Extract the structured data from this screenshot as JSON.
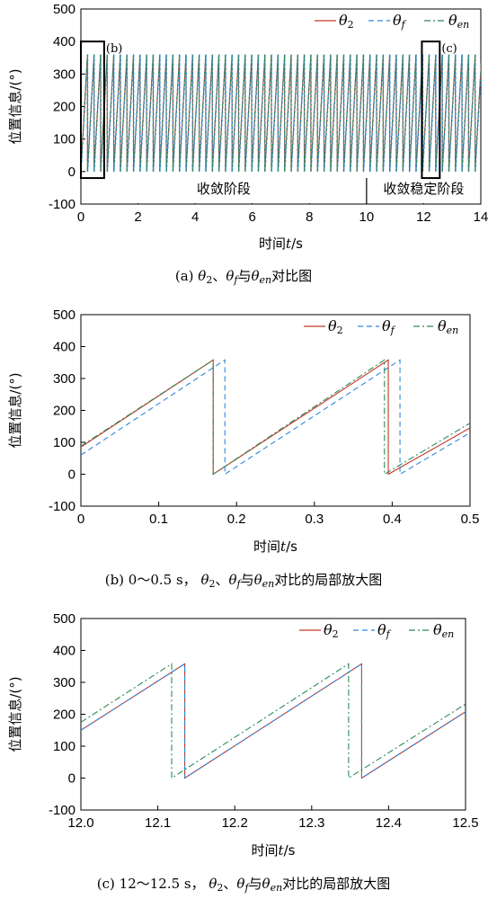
{
  "chart_data": [
    {
      "type": "line",
      "xlabel": "时间t/s",
      "ylabel": "位置信息/(°)",
      "xlim": [
        0,
        14
      ],
      "ylim": [
        -100,
        500
      ],
      "xticks": [
        "0",
        "2",
        "4",
        "6",
        "8",
        "10",
        "12",
        "14"
      ],
      "yticks": [
        "-100",
        "0",
        "100",
        "200",
        "300",
        "400",
        "500"
      ],
      "legend": [
        "θ2",
        "θf",
        "θen"
      ],
      "legend_position": "top-right",
      "grid": false,
      "period_s": 0.23,
      "wrap_deg": 360,
      "annotations": {
        "phase_converge": "收敛阶段",
        "phase_stable": "收敛稳定阶段",
        "phase_boundary_x": 10,
        "box_b_label": "(b)",
        "box_b_x": [
          0,
          0.5
        ],
        "box_b_y": [
          -20,
          400
        ],
        "box_c_label": "(c)",
        "box_c_x": [
          12,
          12.5
        ],
        "box_c_y": [
          -20,
          400
        ]
      },
      "caption": "(a) θ2、θf与θen对比图"
    },
    {
      "type": "line",
      "xlabel": "时间t/s",
      "ylabel": "位置信息/(°)",
      "xlim": [
        0,
        0.5
      ],
      "ylim": [
        -100,
        500
      ],
      "xticks": [
        "0",
        "0.1",
        "0.2",
        "0.3",
        "0.4",
        "0.5"
      ],
      "yticks": [
        "-100",
        "0",
        "100",
        "200",
        "300",
        "400",
        "500"
      ],
      "legend": [
        "θ2",
        "θf",
        "θen"
      ],
      "legend_position": "top-right",
      "grid": false,
      "series": [
        {
          "name": "θ2",
          "color": "#c0392b",
          "dash": "solid",
          "x": [
            0,
            0.17,
            0.17,
            0.395,
            0.395,
            0.5
          ],
          "y": [
            85,
            358,
            0,
            358,
            0,
            145
          ]
        },
        {
          "name": "θf",
          "color": "#2e86de",
          "dash": "dashed",
          "x": [
            0,
            0.185,
            0.185,
            0.41,
            0.41,
            0.5
          ],
          "y": [
            60,
            358,
            0,
            358,
            0,
            130
          ]
        },
        {
          "name": "θen",
          "color": "#2e8b57",
          "dash": "dashdot",
          "x": [
            0,
            0.17,
            0.17,
            0.39,
            0.39,
            0.5
          ],
          "y": [
            88,
            358,
            0,
            358,
            0,
            160
          ]
        }
      ],
      "caption": "(b) 0～0.5 s， θ2、θf与θen对比的局部放大图"
    },
    {
      "type": "line",
      "xlabel": "时间t/s",
      "ylabel": "位置信息/(°)",
      "xlim": [
        12.0,
        12.5
      ],
      "ylim": [
        -100,
        500
      ],
      "xticks": [
        "12.0",
        "12.1",
        "12.2",
        "12.3",
        "12.4",
        "12.5"
      ],
      "yticks": [
        "-100",
        "0",
        "100",
        "200",
        "300",
        "400",
        "500"
      ],
      "legend": [
        "θ2",
        "θf",
        "θen"
      ],
      "legend_position": "top-right",
      "grid": false,
      "series": [
        {
          "name": "θ2",
          "color": "#c0392b",
          "dash": "solid",
          "x": [
            12.0,
            12.135,
            12.135,
            12.365,
            12.365,
            12.5
          ],
          "y": [
            150,
            358,
            0,
            358,
            0,
            208
          ]
        },
        {
          "name": "θf",
          "color": "#2e86de",
          "dash": "dashed",
          "x": [
            12.0,
            12.135,
            12.135,
            12.365,
            12.365,
            12.5
          ],
          "y": [
            150,
            358,
            0,
            358,
            0,
            208
          ]
        },
        {
          "name": "θen",
          "color": "#2e8b57",
          "dash": "dashdot",
          "x": [
            12.0,
            12.118,
            12.118,
            12.348,
            12.348,
            12.5
          ],
          "y": [
            175,
            358,
            0,
            358,
            0,
            232
          ]
        }
      ],
      "caption": "(c) 12～12.5 s， θ2、θf与θen对比的局部放大图"
    }
  ],
  "series_style": [
    {
      "name": "θ2",
      "base": "θ",
      "sub": "2",
      "color": "#c0392b",
      "dash": "solid"
    },
    {
      "name": "θf",
      "base": "θ",
      "sub": "f",
      "color": "#2e86de",
      "dash": "dashed"
    },
    {
      "name": "θen",
      "base": "θ",
      "sub": "en",
      "color": "#2e8b57",
      "dash": "dashdot"
    }
  ]
}
